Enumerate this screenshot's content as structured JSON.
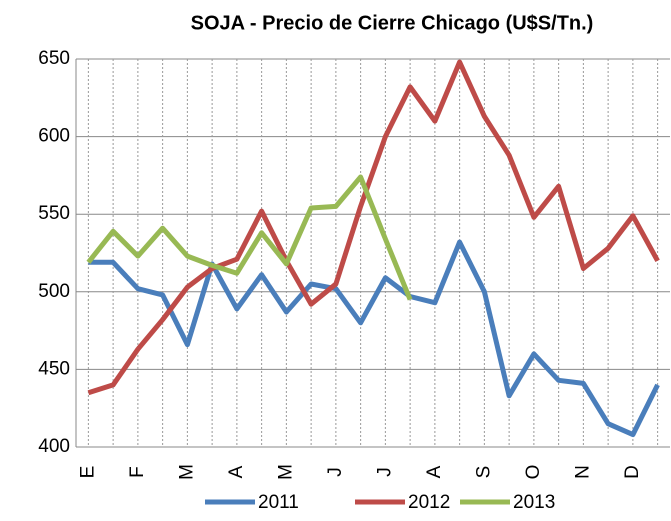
{
  "chart_data": {
    "type": "line",
    "title": "SOJA - Precio de Cierre Chicago (U$S/Tn.)",
    "categories": [
      "E",
      null,
      "F",
      null,
      "M",
      null,
      "A",
      null,
      "M",
      null,
      "J",
      null,
      "J",
      null,
      "A",
      null,
      "S",
      null,
      "O",
      null,
      "N",
      null,
      "D",
      null
    ],
    "series": [
      {
        "name": "2011",
        "color": "#4a7ebb",
        "values": [
          519,
          519,
          502,
          498,
          466,
          518,
          489,
          511,
          487,
          505,
          502,
          480,
          509,
          497,
          493,
          532,
          500,
          433,
          460,
          443,
          441,
          415,
          408,
          440
        ]
      },
      {
        "name": "2012",
        "color": "#be4b48",
        "values": [
          435,
          440,
          463,
          482,
          503,
          515,
          521,
          552,
          520,
          492,
          505,
          555,
          600,
          632,
          610,
          648,
          613,
          588,
          548,
          568,
          515,
          528,
          549,
          520
        ]
      },
      {
        "name": "2013",
        "color": "#98b954",
        "values": [
          519,
          539,
          523,
          541,
          523,
          517,
          512,
          538,
          518,
          554,
          555,
          574,
          534,
          495,
          null,
          null,
          null,
          null,
          null,
          null,
          null,
          null,
          null,
          null
        ]
      }
    ],
    "ylim": [
      400,
      650
    ],
    "yticks": [
      400,
      450,
      500,
      550,
      600,
      650
    ],
    "grid": true
  }
}
